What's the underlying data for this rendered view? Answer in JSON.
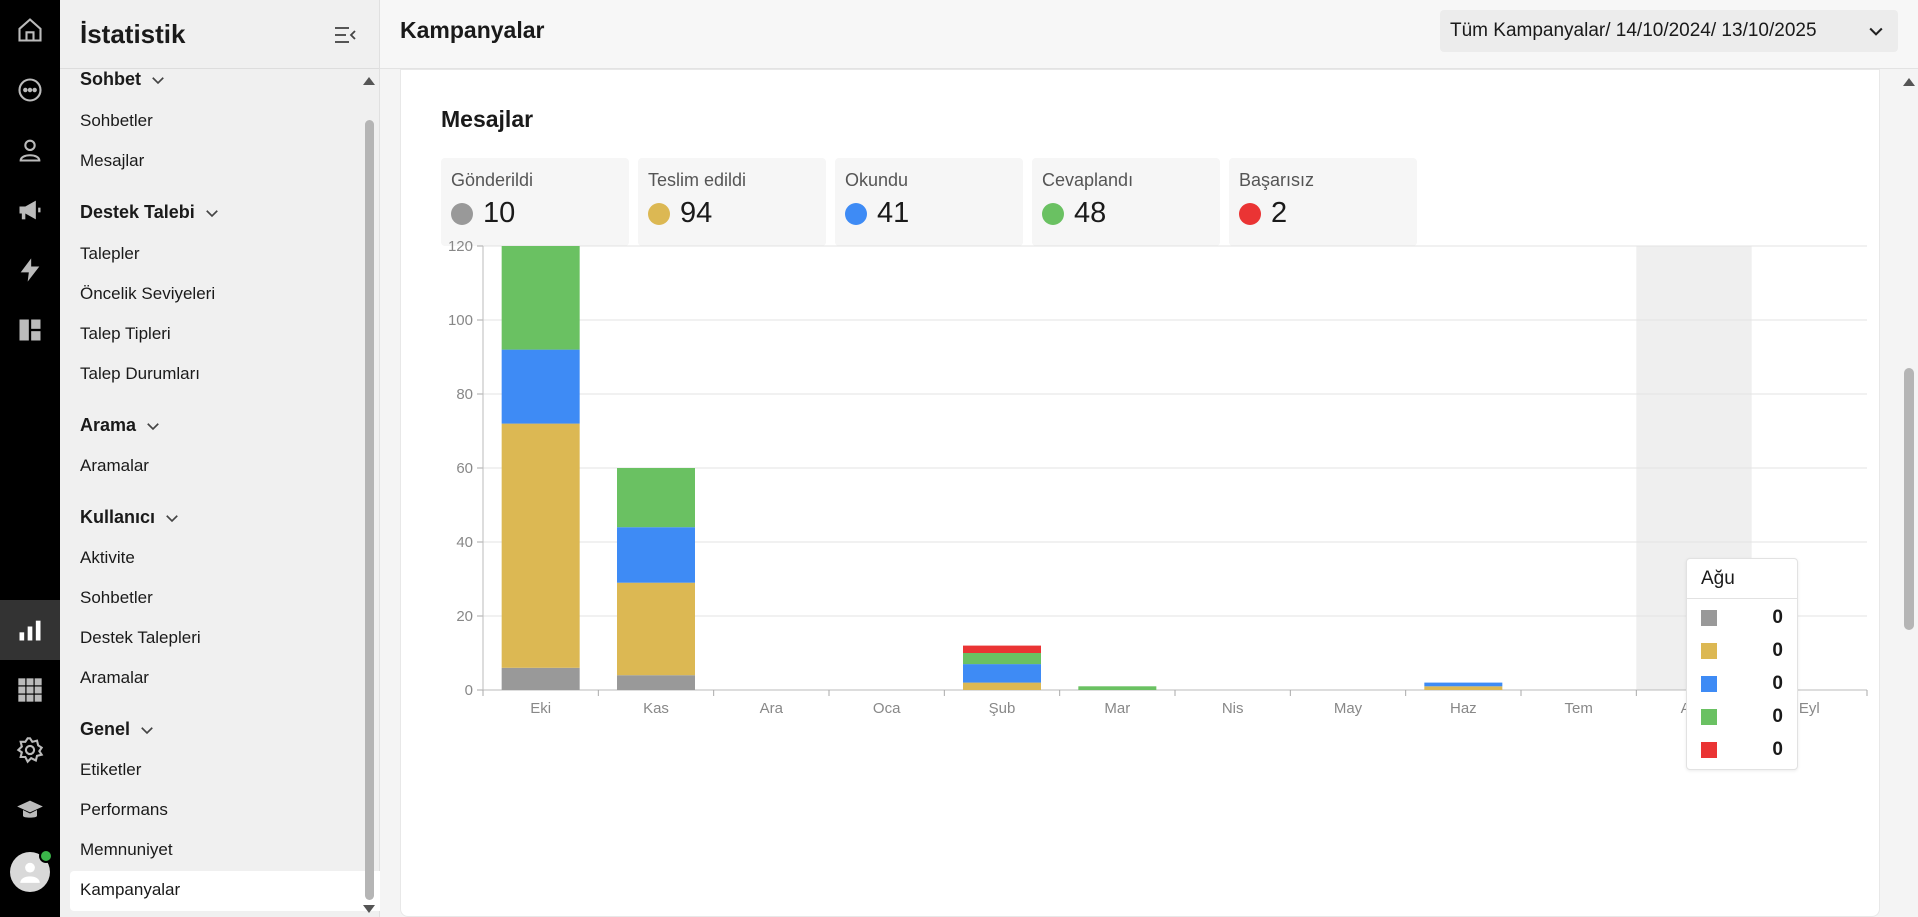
{
  "rail": {
    "items": [
      {
        "name": "home-icon"
      },
      {
        "name": "chat-icon"
      },
      {
        "name": "user-icon"
      },
      {
        "name": "megaphone-icon"
      },
      {
        "name": "lightning-icon"
      },
      {
        "name": "dashboard-icon"
      },
      {
        "name": "bar-chart-icon",
        "active": true
      },
      {
        "name": "apps-grid-icon"
      },
      {
        "name": "gear-icon"
      },
      {
        "name": "graduation-cap-icon"
      }
    ]
  },
  "sidebar": {
    "title": "İstatistik",
    "sections": [
      {
        "label": "Sohbet",
        "items": [
          "Sohbetler",
          "Mesajlar"
        ]
      },
      {
        "label": "Destek Talebi",
        "items": [
          "Talepler",
          "Öncelik Seviyeleri",
          "Talep Tipleri",
          "Talep Durumları"
        ]
      },
      {
        "label": "Arama",
        "items": [
          "Aramalar"
        ]
      },
      {
        "label": "Kullanıcı",
        "items": [
          "Aktivite",
          "Sohbetler",
          "Destek Talepleri",
          "Aramalar"
        ]
      },
      {
        "label": "Genel",
        "items": [
          "Etiketler",
          "Performans",
          "Memnuniyet",
          "Kampanyalar"
        ]
      }
    ],
    "active_item": "Kampanyalar"
  },
  "header": {
    "title": "Kampanyalar",
    "filter_label": "Tüm Kampanyalar/ 14/10/2024/ 13/10/2025"
  },
  "card": {
    "title": "Mesajlar",
    "stats": [
      {
        "label": "Gönderildi",
        "value": "10",
        "color": "#999999"
      },
      {
        "label": "Teslim edildi",
        "value": "94",
        "color": "#dcb853"
      },
      {
        "label": "Okundu",
        "value": "41",
        "color": "#3e8bf5"
      },
      {
        "label": "Cevaplandı",
        "value": "48",
        "color": "#6ac162"
      },
      {
        "label": "Başarısız",
        "value": "2",
        "color": "#ea3434"
      }
    ]
  },
  "chart_data": {
    "type": "bar",
    "stacked": true,
    "categories": [
      "Eki",
      "Kas",
      "Ara",
      "Oca",
      "Şub",
      "Mar",
      "Nis",
      "May",
      "Haz",
      "Tem",
      "Ağu",
      "Eyl"
    ],
    "series": [
      {
        "color": "#999999",
        "values": [
          6,
          4,
          0,
          0,
          0,
          0,
          0,
          0,
          0,
          0,
          0,
          0
        ]
      },
      {
        "color": "#dcb853",
        "values": [
          66,
          25,
          0,
          0,
          2,
          0,
          0,
          0,
          1,
          0,
          0,
          0
        ]
      },
      {
        "color": "#3e8bf5",
        "values": [
          20,
          15,
          0,
          0,
          5,
          0,
          0,
          0,
          1,
          0,
          0,
          0
        ]
      },
      {
        "color": "#6ac162",
        "values": [
          28,
          16,
          0,
          0,
          3,
          1,
          0,
          0,
          0,
          0,
          0,
          0
        ]
      },
      {
        "color": "#ea3434",
        "values": [
          0,
          0,
          0,
          0,
          2,
          0,
          0,
          0,
          0,
          0,
          0,
          0
        ]
      }
    ],
    "ylim": [
      0,
      120
    ],
    "yticks": [
      "0",
      "20",
      "40",
      "60",
      "80",
      "100",
      "120"
    ],
    "grid": true,
    "highlighted_category": "Ağu",
    "tooltip": {
      "title": "Ağu",
      "values": [
        "0",
        "0",
        "0",
        "0",
        "0"
      ]
    }
  }
}
